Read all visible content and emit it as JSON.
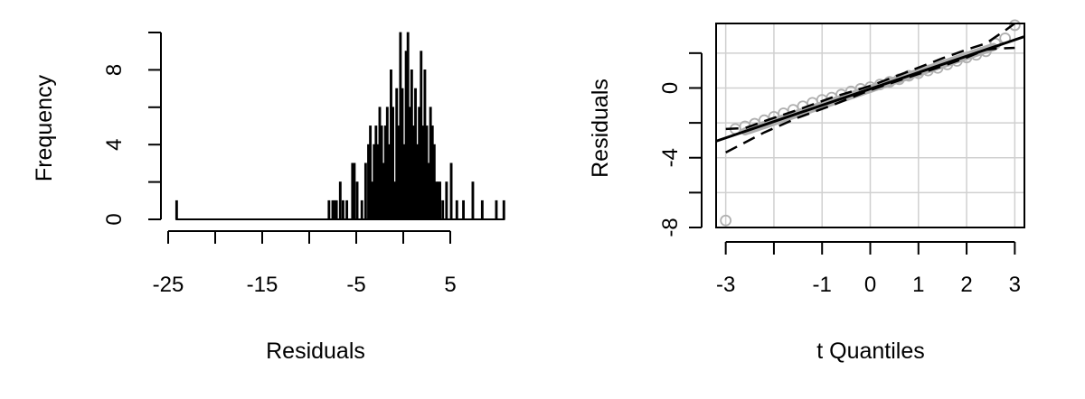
{
  "chart_data": [
    {
      "type": "bar",
      "subtype": "histogram",
      "xlabel": "Residuals",
      "ylabel": "Frequency",
      "xlim": [
        -25,
        11
      ],
      "ylim": [
        0,
        10
      ],
      "x_ticks": [
        "-25",
        "-15",
        "-5",
        "5"
      ],
      "y_ticks": [
        "0",
        "4",
        "8"
      ],
      "grid": false,
      "bin_width": 0.2,
      "bins_x": [
        -24.1,
        -7.9,
        -7.5,
        -7.3,
        -7.1,
        -6.7,
        -6.4,
        -6.0,
        -5.4,
        -5.2,
        -4.9,
        -4.4,
        -4.0,
        -3.7,
        -3.5,
        -3.3,
        -3.1,
        -2.9,
        -2.7,
        -2.5,
        -2.3,
        -2.1,
        -1.9,
        -1.7,
        -1.5,
        -1.3,
        -1.1,
        -0.9,
        -0.7,
        -0.5,
        -0.3,
        -0.1,
        0.1,
        0.3,
        0.5,
        0.7,
        0.9,
        1.1,
        1.3,
        1.5,
        1.7,
        1.9,
        2.1,
        2.3,
        2.5,
        2.7,
        2.9,
        3.1,
        3.3,
        3.5,
        3.7,
        3.9,
        4.2,
        4.6,
        5.1,
        5.7,
        6.4,
        7.4,
        8.4,
        9.9,
        10.7
      ],
      "bins_count": [
        1,
        1,
        1,
        1,
        1,
        2,
        1,
        1,
        3,
        3,
        2,
        1,
        3,
        4,
        5,
        2,
        4,
        5,
        4,
        6,
        5,
        3,
        5,
        6,
        4,
        8,
        6,
        2,
        7,
        5,
        10,
        7,
        4,
        9,
        10,
        6,
        8,
        5,
        7,
        4,
        6,
        9,
        5,
        8,
        5,
        3,
        6,
        5,
        4,
        2,
        2,
        2,
        1,
        2,
        3,
        1,
        1,
        2,
        1,
        1,
        1
      ]
    },
    {
      "type": "scatter",
      "subtype": "qq-plot",
      "xlabel": "t Quantiles",
      "ylabel": "Residuals",
      "xlim": [
        -3.2,
        3.2
      ],
      "ylim": [
        -8,
        3.7
      ],
      "x_ticks": [
        "-3",
        "-1",
        "0",
        "1",
        "2",
        "3"
      ],
      "y_ticks": [
        "-8",
        "-4",
        "0"
      ],
      "grid": true,
      "reference_line": {
        "x": [
          -3.2,
          3.2
        ],
        "y": [
          -3.05,
          2.95
        ]
      },
      "envelope_lower": {
        "x": [
          -3.0,
          -2.2,
          -1.5,
          -0.8,
          0,
          0.8,
          1.5,
          2.0,
          2.4,
          2.6,
          3.0
        ],
        "y": [
          -3.7,
          -2.55,
          -1.7,
          -1.0,
          -0.12,
          0.62,
          1.25,
          1.75,
          2.2,
          2.25,
          2.3
        ]
      },
      "envelope_upper": {
        "x": [
          -3.0,
          -2.6,
          -2.2,
          -1.5,
          -0.8,
          0,
          0.8,
          1.5,
          2.0,
          2.4,
          2.8,
          3.0
        ],
        "y": [
          -2.35,
          -2.3,
          -1.9,
          -1.25,
          -0.55,
          0.12,
          0.95,
          1.7,
          2.2,
          2.55,
          3.3,
          3.7
        ]
      },
      "points_color": "#b0b0b0",
      "points": {
        "x": [
          -3.0,
          3.0,
          -2.8,
          -2.6,
          -2.4,
          -2.2,
          -2.0,
          -1.8,
          -1.6,
          -1.4,
          -1.2,
          -1.0,
          -0.8,
          -0.6,
          -0.4,
          -0.2,
          0.0,
          0.2,
          0.4,
          0.6,
          0.8,
          1.0,
          1.2,
          1.4,
          1.6,
          1.8,
          2.0,
          2.2,
          2.4,
          2.6,
          2.8
        ],
        "y": [
          -7.6,
          3.6,
          -2.35,
          -2.2,
          -2.05,
          -1.85,
          -1.65,
          -1.45,
          -1.25,
          -1.05,
          -0.85,
          -0.68,
          -0.55,
          -0.38,
          -0.2,
          -0.05,
          0.05,
          0.2,
          0.35,
          0.5,
          0.7,
          0.85,
          1.0,
          1.15,
          1.35,
          1.55,
          1.75,
          1.9,
          2.1,
          2.55,
          2.85
        ]
      }
    }
  ]
}
